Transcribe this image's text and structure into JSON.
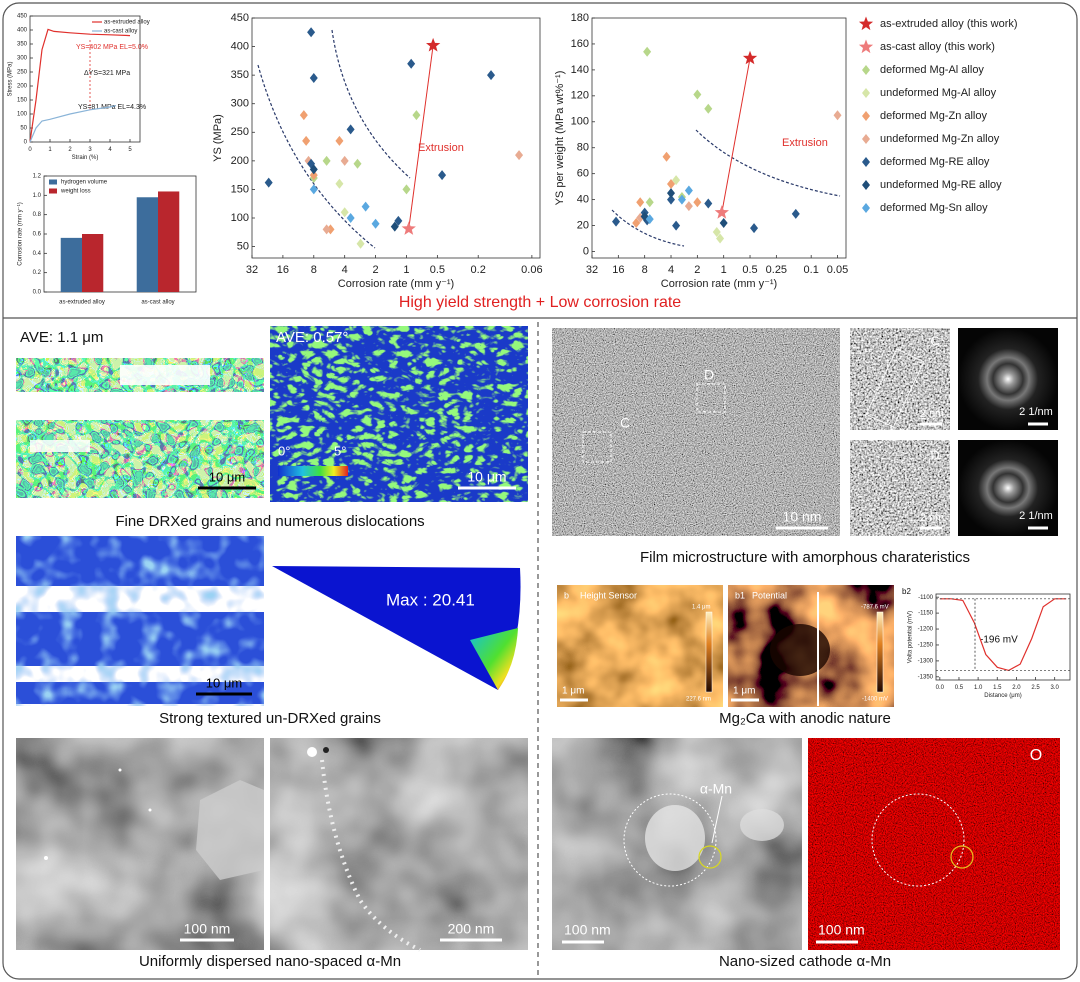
{
  "headline": "High yield strength + Low corrosion rate",
  "chart_data": [
    {
      "type": "line",
      "x_label": "Strain (%)",
      "y_label": "Stress (MPa)",
      "xlim": [
        0,
        5.5
      ],
      "xticks": [
        0,
        1,
        2,
        3,
        4,
        5
      ],
      "ylim": [
        0,
        450
      ],
      "yticks": [
        0,
        50,
        100,
        150,
        200,
        250,
        300,
        350,
        400,
        450
      ],
      "legend": "upper right",
      "series": [
        {
          "name": "as-extruded alloy",
          "color": "#e0302c",
          "x": [
            0,
            0.3,
            0.6,
            0.9,
            1.2,
            2,
            3,
            4,
            5
          ],
          "values": [
            0,
            150,
            330,
            402,
            395,
            390,
            385,
            383,
            380
          ]
        },
        {
          "name": "as-cast alloy",
          "color": "#8ab4d8",
          "x": [
            0,
            0.3,
            0.6,
            1,
            2,
            3,
            4,
            4.3
          ],
          "values": [
            0,
            50,
            75,
            81,
            100,
            115,
            125,
            130
          ]
        }
      ],
      "annotations": [
        "YS=402 MPa  EL=5.0%",
        "ΔYS=321 MPa",
        "YS=81 MPa EL=4.3%"
      ]
    },
    {
      "type": "bar",
      "y_label": "Corrosion rate (mm y⁻¹)",
      "categories": [
        "as-extruded alloy",
        "as-cast alloy"
      ],
      "ylim": [
        0,
        1.2
      ],
      "yticks": [
        {
          "value": 0,
          "label": "0.0"
        },
        0.2,
        0.4,
        0.6,
        0.8,
        {
          "value": 1,
          "label": "1.0"
        },
        1.2
      ],
      "legend": "upper left",
      "series": [
        {
          "name": "hydrogen volume",
          "color": "#3d6d9c",
          "values": [
            0.56,
            0.98
          ]
        },
        {
          "name": "weight loss",
          "color": "#b9262d",
          "values": [
            0.6,
            1.04
          ]
        }
      ]
    },
    {
      "type": "scatter",
      "x_label": "Corrosion rate (mm y⁻¹)",
      "y_label": "YS (MPa)",
      "xlog": true,
      "xlim": [
        32,
        0.05
      ],
      "xticks": [
        32,
        16,
        8,
        4,
        2,
        1,
        0.5,
        0.2,
        0.06
      ],
      "ylim": [
        30,
        450
      ],
      "yticks": [
        50,
        100,
        150,
        200,
        250,
        300,
        350,
        400,
        450
      ],
      "annotations": [
        "Extrusion"
      ],
      "series": [
        {
          "color": "#d42a2a",
          "marker": "star",
          "x": [
            0.55
          ],
          "values": [
            402
          ]
        },
        {
          "color": "#ee7b7b",
          "marker": "star",
          "x": [
            0.95
          ],
          "values": [
            81
          ]
        },
        {
          "color": "#b7d78a",
          "marker": "diamond",
          "x": [
            8,
            3,
            1,
            0.8,
            6
          ],
          "values": [
            170,
            195,
            150,
            280,
            200
          ]
        },
        {
          "color": "#d6e6a8",
          "marker": "diamond",
          "x": [
            4.5,
            2.8,
            4
          ],
          "values": [
            160,
            55,
            110
          ]
        },
        {
          "color": "#f0a070",
          "marker": "diamond",
          "x": [
            10,
            9.5,
            8,
            4.5,
            5.5
          ],
          "values": [
            280,
            235,
            175,
            235,
            80
          ]
        },
        {
          "color": "#e8ab92",
          "marker": "diamond",
          "x": [
            9,
            4,
            0.08,
            6
          ],
          "values": [
            200,
            200,
            210,
            80
          ]
        },
        {
          "color": "#2a5a8c",
          "marker": "diamond",
          "x": [
            8.5,
            8,
            22,
            8.5,
            0.9,
            0.15,
            0.45,
            3.5,
            1.2
          ],
          "values": [
            425,
            345,
            162,
            195,
            370,
            350,
            175,
            255,
            95
          ]
        },
        {
          "color": "#1f4e79",
          "marker": "diamond",
          "x": [
            8,
            1.3
          ],
          "values": [
            185,
            85
          ]
        },
        {
          "color": "#5aa8e0",
          "marker": "diamond",
          "x": [
            2.5,
            2,
            3.5,
            8
          ],
          "values": [
            120,
            90,
            100,
            150
          ]
        }
      ]
    },
    {
      "type": "scatter",
      "x_label": "Corrosion rate (mm y⁻¹)",
      "y_label": "YS per weight (MPa wt%⁻¹)",
      "xlog": true,
      "xlim": [
        32,
        0.04
      ],
      "xticks": [
        32,
        16,
        8,
        4,
        2,
        1,
        0.5,
        0.25,
        0.1,
        0.05
      ],
      "ylim": [
        -5,
        180
      ],
      "yticks": [
        0,
        20,
        40,
        60,
        80,
        100,
        120,
        140,
        160,
        180
      ],
      "legend": "outside right",
      "annotations": [
        "Extrusion"
      ],
      "series": [
        {
          "name": "as-extruded alloy (this work)",
          "color": "#d42a2a",
          "marker": "star",
          "x": [
            0.5
          ],
          "values": [
            149
          ]
        },
        {
          "name": "as-cast alloy (this work)",
          "color": "#ee7b7b",
          "marker": "star",
          "x": [
            1.05
          ],
          "values": [
            30
          ]
        },
        {
          "name": "deformed Mg-Al alloy",
          "color": "#b7d78a",
          "marker": "diamond",
          "x": [
            7.5,
            2,
            1.5,
            7,
            3
          ],
          "values": [
            154,
            121,
            110,
            38,
            42
          ]
        },
        {
          "name": "undeformed Mg-Al alloy",
          "color": "#d6e6a8",
          "marker": "diamond",
          "x": [
            1.2,
            1.1,
            3.5
          ],
          "values": [
            15,
            10,
            55
          ]
        },
        {
          "name": "deformed Mg-Zn alloy",
          "color": "#f0a070",
          "marker": "diamond",
          "x": [
            4.5,
            9,
            4,
            10,
            2
          ],
          "values": [
            73,
            38,
            52,
            22,
            38
          ]
        },
        {
          "name": "undeformed Mg-Zn alloy",
          "color": "#e8ab92",
          "marker": "diamond",
          "x": [
            0.05,
            9,
            2.5
          ],
          "values": [
            105,
            26,
            35
          ]
        },
        {
          "name": "deformed Mg-RE alloy",
          "color": "#2a5a8c",
          "marker": "diamond",
          "x": [
            17,
            8,
            7.5,
            4,
            3.5,
            0.45,
            0.15,
            1.5
          ],
          "values": [
            23,
            30,
            24,
            40,
            20,
            18,
            29,
            37
          ]
        },
        {
          "name": "undeformed Mg-RE alloy",
          "color": "#1f4e79",
          "marker": "diamond",
          "x": [
            8,
            1,
            4
          ],
          "values": [
            27,
            22,
            45
          ]
        },
        {
          "name": "deformed Mg-Sn alloy",
          "color": "#5aa8e0",
          "marker": "diamond",
          "x": [
            2.5,
            3,
            7
          ],
          "values": [
            47,
            40,
            25
          ]
        }
      ]
    },
    {
      "type": "line",
      "x_label": "Distance (μm)",
      "y_label": "Volta potential (mV)",
      "xlim": [
        -0.1,
        3.4
      ],
      "xticks": [
        {
          "value": 0,
          "label": "0.0"
        },
        0.5,
        {
          "value": 1,
          "label": "1.0"
        },
        1.5,
        {
          "value": 2,
          "label": "2.0"
        },
        2.5,
        {
          "value": 3,
          "label": "3.0"
        }
      ],
      "ylim": [
        -1360,
        -1090
      ],
      "yticks": [
        -1100,
        -1150,
        -1200,
        -1250,
        -1300,
        -1350
      ],
      "annotations": [
        "-196 mV"
      ],
      "series": [
        {
          "color": "#e0302c",
          "x": [
            0,
            0.3,
            0.6,
            0.9,
            1.2,
            1.5,
            1.8,
            2.1,
            2.4,
            2.7,
            3.0,
            3.3
          ],
          "values": [
            -1105,
            -1105,
            -1110,
            -1180,
            -1280,
            -1320,
            -1330,
            -1310,
            -1230,
            -1130,
            -1105,
            -1105
          ]
        }
      ]
    }
  ],
  "panels": {
    "ebsd": {
      "ave": "AVE:  1.1 μm",
      "scale": "10 μm"
    },
    "kam": {
      "ave": "AVE:  0.57°",
      "scale_min": "0°",
      "scale_max": "5°",
      "scale": "10 μm"
    },
    "caption_1": "Fine DRXed grains and numerous dislocations",
    "ebsd_2": {
      "scale": "10 μm"
    },
    "pole": {
      "max": "Max :  20.41"
    },
    "caption_2": "Strong textured un-DRXed grains",
    "stem": {
      "scale_1": "100 nm",
      "scale_2": "200 nm"
    },
    "caption_3": "Uniformly dispersed nano-spaced α-Mn",
    "tem": {
      "scale": "10 nm",
      "label_c": "C",
      "label_d": "D",
      "inset_c": "C",
      "inset_d": "D",
      "inset_scale_c": "2 nm",
      "inset_scale_d": "2 nm",
      "fft_scale_c": "2 1/nm",
      "fft_scale_d": "2 1/nm"
    },
    "caption_4": "Film microstructure with amorphous charateristics",
    "afm": {
      "height_tag": "b",
      "height_title": "Height Sensor",
      "height_max": "1.4 μm",
      "height_min": "227.6 nm",
      "height_scale": "1 μm",
      "potential_tag": "b1",
      "potential_title": "Potential",
      "potential_max": "-787.6 mV",
      "potential_min": "-1400 mV",
      "potential_scale": "1 μm",
      "profile_tag": "b2"
    },
    "caption_5": "Mg₂Ca with anodic nature",
    "eds": {
      "phase": "α-Mn",
      "scale_1": "100 nm",
      "scale_2": "100 nm",
      "element": "O"
    },
    "caption_6": "Nano-sized cathode α-Mn"
  }
}
